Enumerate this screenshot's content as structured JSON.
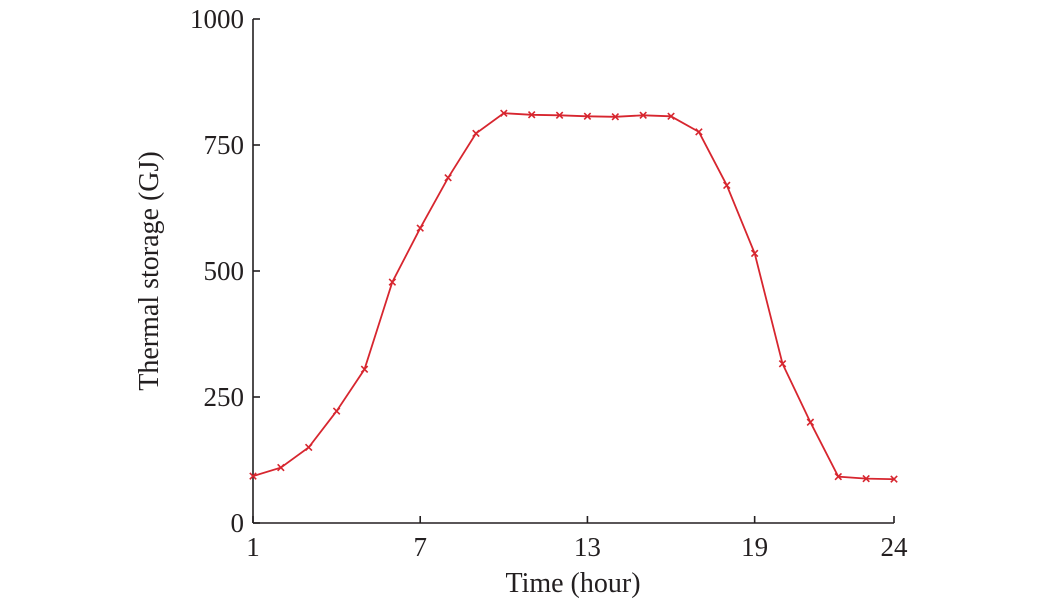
{
  "chart_data": {
    "type": "line",
    "title": "",
    "xlabel": "Time (hour)",
    "ylabel": "Thermal storage (GJ)",
    "xlim": [
      1,
      24
    ],
    "ylim": [
      0,
      1000
    ],
    "xticks": [
      1,
      7,
      13,
      19,
      24
    ],
    "yticks": [
      0,
      250,
      500,
      750,
      1000
    ],
    "grid": false,
    "marker": "x",
    "color": "#d7262f",
    "series": [
      {
        "x": [
          1,
          2,
          3,
          4,
          5,
          6,
          7,
          8,
          9,
          10,
          11,
          12,
          13,
          14,
          15,
          16,
          17,
          18,
          19,
          20,
          21,
          22,
          23,
          24
        ],
        "values": [
          93,
          110,
          150,
          222,
          305,
          478,
          585,
          685,
          773,
          813,
          810,
          809,
          807,
          806,
          809,
          807,
          776,
          670,
          535,
          316,
          200,
          92,
          88,
          87
        ]
      }
    ]
  }
}
